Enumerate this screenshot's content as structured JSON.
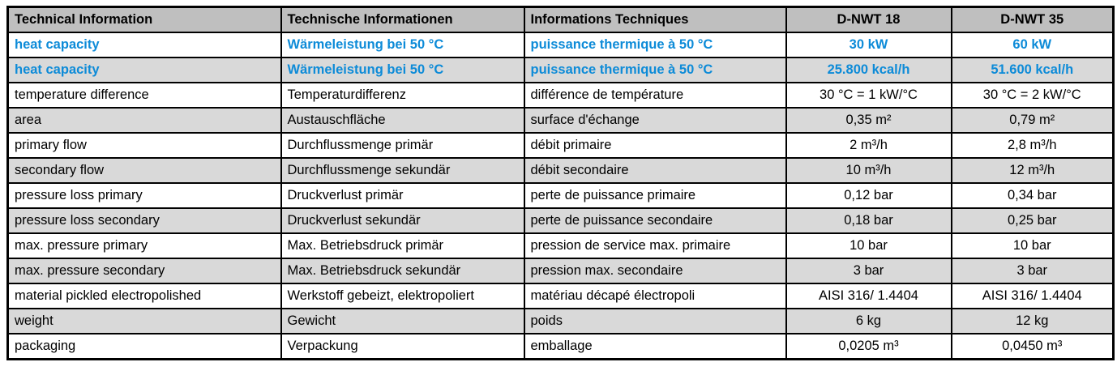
{
  "colors": {
    "accent_blue": "#0d8bd8",
    "header_bg": "#bfbfbf",
    "stripe_bg": "#d9d9d9",
    "border": "#000000"
  },
  "table": {
    "headers": [
      {
        "label": "Technical Information",
        "align": "left"
      },
      {
        "label": "Technische Informationen",
        "align": "left"
      },
      {
        "label": "Informations Techniques",
        "align": "left"
      },
      {
        "label": "D-NWT 18",
        "align": "center"
      },
      {
        "label": "D-NWT 35",
        "align": "center"
      }
    ],
    "rows": [
      {
        "en": "heat capacity",
        "de": "Wärmeleistung bei 50 °C",
        "fr": "puissance thermique à 50 °C",
        "nwt18": "30 kW",
        "nwt35": "60 kW",
        "highlight": true
      },
      {
        "en": "heat capacity",
        "de": "Wärmeleistung bei 50 °C",
        "fr": "puissance thermique à 50 °C",
        "nwt18": "25.800 kcal/h",
        "nwt35": "51.600 kcal/h",
        "highlight": true
      },
      {
        "en": "temperature difference",
        "de": "Temperaturdifferenz",
        "fr": "différence de température",
        "nwt18": "30 °C = 1 kW/°C",
        "nwt35": "30 °C = 2 kW/°C",
        "highlight": false
      },
      {
        "en": "area",
        "de": "Austauschfläche",
        "fr": "surface d'échange",
        "nwt18": "0,35 m²",
        "nwt35": "0,79 m²",
        "highlight": false
      },
      {
        "en": "primary flow",
        "de": "Durchflussmenge primär",
        "fr": "débit primaire",
        "nwt18": "2 m³/h",
        "nwt35": "2,8 m³/h",
        "highlight": false
      },
      {
        "en": "secondary flow",
        "de": "Durchflussmenge sekundär",
        "fr": "débit secondaire",
        "nwt18": "10 m³/h",
        "nwt35": "12 m³/h",
        "highlight": false
      },
      {
        "en": "pressure loss primary",
        "de": "Druckverlust primär",
        "fr": "perte de puissance primaire",
        "nwt18": "0,12 bar",
        "nwt35": "0,34 bar",
        "highlight": false
      },
      {
        "en": "pressure loss secondary",
        "de": "Druckverlust sekundär",
        "fr": "perte de puissance secondaire",
        "nwt18": "0,18 bar",
        "nwt35": "0,25 bar",
        "highlight": false
      },
      {
        "en": "max. pressure primary",
        "de": "Max. Betriebsdruck primär",
        "fr": "pression de service max. primaire",
        "nwt18": "10 bar",
        "nwt35": "10 bar",
        "highlight": false
      },
      {
        "en": "max. pressure secondary",
        "de": "Max. Betriebsdruck sekundär",
        "fr": "pression max. secondaire",
        "nwt18": "3 bar",
        "nwt35": "3 bar",
        "highlight": false
      },
      {
        "en": "material pickled electropolished",
        "de": "Werkstoff gebeizt, elektropoliert",
        "fr": "matériau décapé électropoli",
        "nwt18": "AISI 316/ 1.4404",
        "nwt35": "AISI 316/ 1.4404",
        "highlight": false
      },
      {
        "en": "weight",
        "de": "Gewicht",
        "fr": "poids",
        "nwt18": "6 kg",
        "nwt35": "12 kg",
        "highlight": false
      },
      {
        "en": "packaging",
        "de": "Verpackung",
        "fr": "emballage",
        "nwt18": "0,0205 m³",
        "nwt35": "0,0450 m³",
        "highlight": false
      }
    ]
  }
}
